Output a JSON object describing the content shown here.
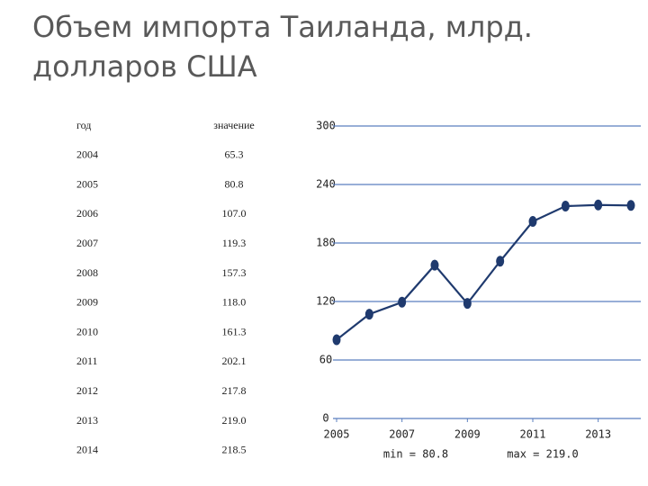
{
  "title": [
    "Объем импорта Таиланда, млрд.",
    "долларов США"
  ],
  "table": {
    "header": [
      "год",
      "значение"
    ],
    "rows": [
      [
        "2004",
        "65.3"
      ],
      [
        "2005",
        "80.8"
      ],
      [
        "2006",
        "107.0"
      ],
      [
        "2007",
        "119.3"
      ],
      [
        "2008",
        "157.3"
      ],
      [
        "2009",
        "118.0"
      ],
      [
        "2010",
        "161.3"
      ],
      [
        "2011",
        "202.1"
      ],
      [
        "2012",
        "217.8"
      ],
      [
        "2013",
        "219.0"
      ],
      [
        "2014",
        "218.5"
      ]
    ]
  },
  "chart_data": {
    "type": "line",
    "x": [
      2005,
      2006,
      2007,
      2008,
      2009,
      2010,
      2011,
      2012,
      2013,
      2014
    ],
    "values": [
      80.8,
      107.0,
      119.3,
      157.3,
      118.0,
      161.3,
      202.1,
      217.8,
      219.0,
      218.5
    ],
    "color": "#1f3a6e",
    "xlim": [
      2005,
      2014
    ],
    "xticks": [
      2005,
      2007,
      2009,
      2011,
      2013
    ],
    "ylim": [
      0,
      300
    ],
    "yticks": [
      0,
      60,
      120,
      180,
      240,
      300
    ],
    "grid": true,
    "annotations": [
      "min = 80.8",
      "max = 219.0"
    ]
  }
}
